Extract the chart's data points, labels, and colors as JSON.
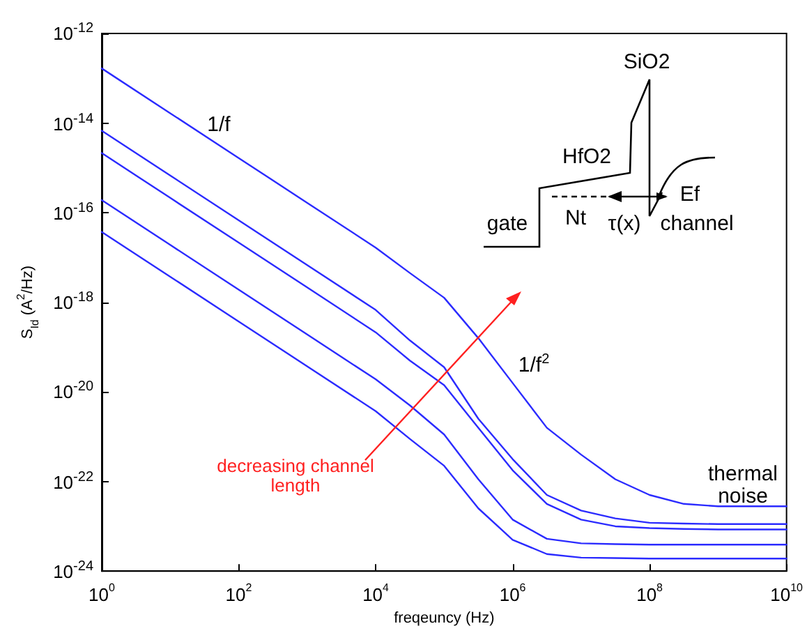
{
  "chart_data": {
    "type": "line",
    "xlabel": "freqeuncy (Hz)",
    "ylabel": "S$_{Id}$ (A$^{2}$/Hz)",
    "x": [
      1,
      10,
      100,
      1000,
      10000,
      31623,
      100000,
      316228,
      1000000,
      3162278,
      10000000,
      31622777,
      100000000,
      316227766,
      1000000000,
      10000000000
    ],
    "series": [
      {
        "color": "#2b2bff",
        "values": [
          1.66e-13,
          1.66e-14,
          1.66e-15,
          1.66e-16,
          1.66e-17,
          4.5e-18,
          1.26e-18,
          1.58e-19,
          1.58e-20,
          1.58e-21,
          3.98e-22,
          1.12e-22,
          5e-23,
          3.16e-23,
          2.8e-23,
          2.8e-23
        ]
      },
      {
        "color": "#2b2bff",
        "values": [
          6.76e-15,
          6.76e-16,
          6.76e-17,
          6.76e-18,
          6.76e-19,
          1.41e-19,
          3.55e-20,
          2.51e-21,
          3.16e-22,
          5e-23,
          2.24e-23,
          1.5e-23,
          1.2e-23,
          1.15e-23,
          1.12e-23,
          1.12e-23
        ]
      },
      {
        "color": "#2b2bff",
        "values": [
          2.14e-15,
          2.14e-16,
          2.14e-17,
          2.14e-18,
          2.14e-19,
          5e-20,
          1.41e-20,
          1.58e-21,
          1.78e-22,
          3.16e-23,
          1.41e-23,
          1e-23,
          9.1e-24,
          8.7e-24,
          8.5e-24,
          8.5e-24
        ]
      },
      {
        "color": "#2b2bff",
        "values": [
          1.91e-16,
          1.91e-17,
          1.91e-18,
          1.91e-19,
          1.91e-20,
          5e-21,
          1.12e-21,
          1.12e-22,
          1.41e-23,
          5.25e-24,
          4.17e-24,
          4e-24,
          3.9e-24,
          3.9e-24,
          3.9e-24,
          3.9e-24
        ]
      },
      {
        "color": "#2b2bff",
        "values": [
          3.72e-17,
          3.72e-18,
          3.72e-19,
          3.72e-20,
          3.72e-21,
          8.9e-22,
          2.24e-22,
          2.51e-23,
          5e-24,
          2.4e-24,
          2e-24,
          1.95e-24,
          1.9e-24,
          1.9e-24,
          1.9e-24,
          1.9e-24
        ]
      }
    ],
    "log": "xy",
    "xlim": [
      1,
      10000000000
    ],
    "xticks": [
      {
        "value": 1,
        "label": "10$^{0}$"
      },
      {
        "value": 100,
        "label": "10$^{2}$"
      },
      {
        "value": 10000,
        "label": "10$^{4}$"
      },
      {
        "value": 1000000,
        "label": "10$^{6}$"
      },
      {
        "value": 100000000,
        "label": "10$^{8}$"
      },
      {
        "value": 10000000000,
        "label": "10$^{10}$"
      }
    ],
    "ylim": [
      1e-24,
      1e-12
    ],
    "yticks": [
      {
        "value": 1e-24,
        "label": "10$^{-24}$"
      },
      {
        "value": 1e-22,
        "label": "10$^{-22}$"
      },
      {
        "value": 1e-20,
        "label": "10$^{-20}$"
      },
      {
        "value": 1e-18,
        "label": "10$^{-18}$"
      },
      {
        "value": 1e-16,
        "label": "10$^{-16}$"
      },
      {
        "value": 1e-14,
        "label": "10$^{-14}$"
      },
      {
        "value": 1e-12,
        "label": "10$^{-12}$"
      }
    ],
    "grid": false,
    "marker": "none",
    "line_style": "solid",
    "annotations": [
      "1/f",
      "1/f$^{2}$",
      "thermal noise",
      "decreasing channel length",
      "SiO2",
      "HfO2",
      "gate",
      "Nt",
      "τ(x)",
      "Ef",
      "channel"
    ]
  }
}
